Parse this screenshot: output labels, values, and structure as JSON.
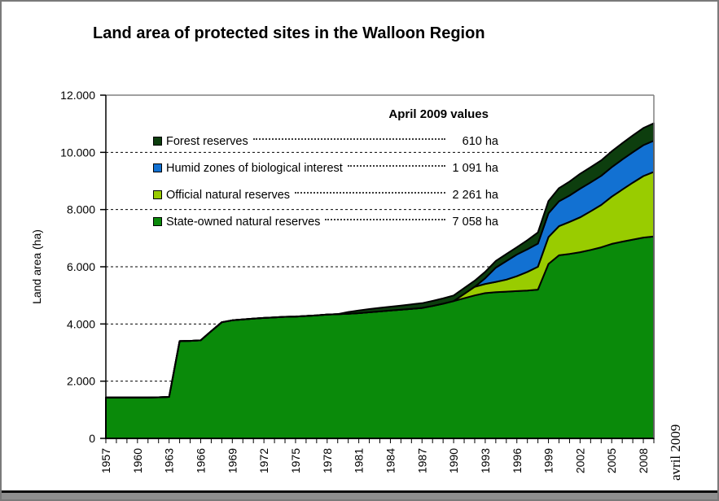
{
  "title": "Land area of protected sites in the Walloon Region",
  "legend": {
    "header": "April 2009 values",
    "items": [
      {
        "id": "forest-reserves",
        "label": "Forest reserves",
        "value": "610 ha",
        "color": "#0d3e0e"
      },
      {
        "id": "humid-zones",
        "label": "Humid zones of biological interest",
        "value": "1 091 ha",
        "color": "#1271d2"
      },
      {
        "id": "official-natural-reserves",
        "label": "Official natural reserves",
        "value": "2 261 ha",
        "color": "#99cc00"
      },
      {
        "id": "state-owned-natural-reserves",
        "label": "State-owned natural reserves",
        "value": "7 058 ha",
        "color": "#0a8a0a"
      }
    ]
  },
  "side_note": "avril 2009",
  "chart_data": {
    "type": "area",
    "stacked": true,
    "title": "Land area of protected sites in the Walloon Region",
    "xlabel": "",
    "ylabel": "Land area (ha)",
    "ylim": [
      0,
      12000
    ],
    "grid": "horizontal dashed lines at 2000..10000",
    "legend_position": "inside-top",
    "gridlines": [
      2000,
      4000,
      6000,
      8000,
      10000
    ],
    "y_ticks": [
      {
        "value": 0,
        "label": "0"
      },
      {
        "value": 2000,
        "label": "2.000"
      },
      {
        "value": 4000,
        "label": "4.000"
      },
      {
        "value": 6000,
        "label": "6.000"
      },
      {
        "value": 8000,
        "label": "8.000"
      },
      {
        "value": 10000,
        "label": "10.000"
      },
      {
        "value": 12000,
        "label": "12.000"
      }
    ],
    "x_labeled_ticks": [
      1957,
      1960,
      1963,
      1966,
      1969,
      1972,
      1975,
      1978,
      1981,
      1984,
      1987,
      1990,
      1993,
      1996,
      1999,
      2002,
      2005,
      2008
    ],
    "x": [
      1957,
      1958,
      1959,
      1960,
      1961,
      1962,
      1963,
      1964,
      1965,
      1966,
      1967,
      1968,
      1969,
      1970,
      1971,
      1972,
      1973,
      1974,
      1975,
      1976,
      1977,
      1978,
      1979,
      1980,
      1981,
      1982,
      1983,
      1984,
      1985,
      1986,
      1987,
      1988,
      1989,
      1990,
      1991,
      1992,
      1993,
      1994,
      1995,
      1996,
      1997,
      1998,
      1999,
      2000,
      2001,
      2002,
      2003,
      2004,
      2005,
      2006,
      2007,
      2008,
      2009
    ],
    "series_order": "bottom-to-top",
    "series": [
      {
        "id": "state-owned-natural-reserves",
        "name": "State-owned natural reserves",
        "color": "#0a8a0a",
        "april_2009_value_ha": 7058,
        "values": [
          1430,
          1430,
          1430,
          1430,
          1430,
          1435,
          1450,
          3400,
          3410,
          3430,
          3750,
          4060,
          4130,
          4160,
          4190,
          4210,
          4230,
          4250,
          4260,
          4280,
          4300,
          4330,
          4345,
          4360,
          4380,
          4410,
          4440,
          4470,
          4500,
          4530,
          4560,
          4630,
          4710,
          4800,
          4900,
          5000,
          5080,
          5110,
          5130,
          5150,
          5170,
          5200,
          6100,
          6400,
          6450,
          6510,
          6590,
          6680,
          6800,
          6880,
          6950,
          7020,
          7058
        ]
      },
      {
        "id": "official-natural-reserves",
        "name": "Official natural reserves",
        "color": "#99cc00",
        "april_2009_value_ha": 2261,
        "values": [
          0,
          0,
          0,
          0,
          0,
          0,
          0,
          0,
          0,
          0,
          0,
          0,
          0,
          0,
          0,
          0,
          0,
          0,
          0,
          0,
          0,
          0,
          0,
          0,
          0,
          0,
          0,
          0,
          0,
          0,
          0,
          0,
          0,
          0,
          150,
          300,
          320,
          360,
          420,
          520,
          650,
          800,
          940,
          1020,
          1120,
          1220,
          1350,
          1480,
          1650,
          1820,
          1990,
          2150,
          2261
        ]
      },
      {
        "id": "humid-zones",
        "name": "Humid zones of biological interest",
        "color": "#1271d2",
        "april_2009_value_ha": 1091,
        "values": [
          0,
          0,
          0,
          0,
          0,
          0,
          0,
          0,
          0,
          0,
          0,
          0,
          0,
          0,
          0,
          0,
          0,
          0,
          0,
          0,
          0,
          0,
          0,
          0,
          0,
          0,
          0,
          0,
          0,
          0,
          0,
          0,
          0,
          0,
          0,
          0,
          200,
          500,
          650,
          760,
          790,
          810,
          830,
          870,
          920,
          1000,
          1010,
          1020,
          1030,
          1050,
          1065,
          1080,
          1091
        ]
      },
      {
        "id": "forest-reserves",
        "name": "Forest reserves",
        "color": "#0d3e0e",
        "april_2009_value_ha": 610,
        "values": [
          0,
          0,
          0,
          0,
          0,
          0,
          0,
          0,
          0,
          0,
          0,
          0,
          0,
          0,
          0,
          0,
          0,
          0,
          0,
          0,
          0,
          0,
          0,
          60,
          90,
          110,
          125,
          135,
          145,
          155,
          165,
          175,
          185,
          195,
          205,
          215,
          225,
          235,
          245,
          255,
          320,
          390,
          430,
          460,
          490,
          520,
          530,
          540,
          555,
          570,
          585,
          600,
          610
        ]
      }
    ]
  }
}
